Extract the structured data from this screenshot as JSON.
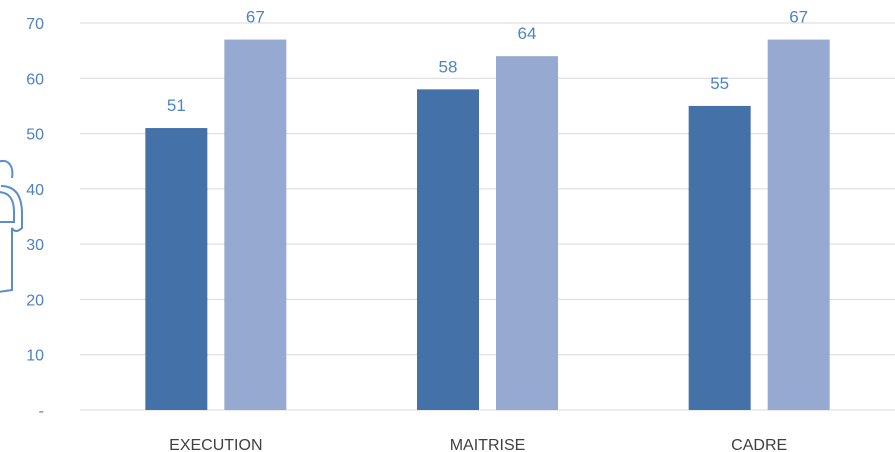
{
  "chart_data": {
    "type": "bar",
    "categories": [
      "EXECUTION",
      "MAITRISE",
      "CADRE"
    ],
    "series": [
      {
        "values": [
          51,
          58,
          55
        ],
        "color": "#4472a8"
      },
      {
        "values": [
          67,
          64,
          67
        ],
        "color": "#95a9d1"
      }
    ],
    "ylim": [
      0,
      70
    ],
    "yticks": [
      0,
      10,
      20,
      30,
      40,
      50,
      60,
      70
    ],
    "ytick_labels": [
      "-",
      "10",
      "20",
      "30",
      "40",
      "50",
      "60",
      "70"
    ],
    "grid": true,
    "legend": "none"
  },
  "decor": {
    "icon": "person-icon"
  }
}
